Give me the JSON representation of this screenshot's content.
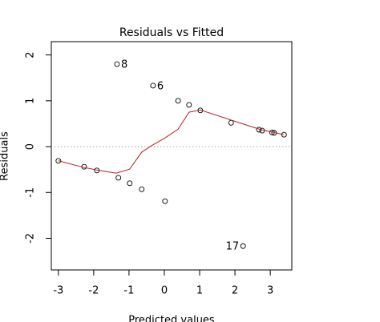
{
  "chart_data": {
    "type": "scatter",
    "title": "Residuals vs Fitted",
    "x_label": "Predicted values",
    "y_label": "Residuals",
    "xlim": [
      -3.2,
      3.61
    ],
    "ylim": [
      -2.69,
      2.29
    ],
    "xticks": [
      -3,
      -2,
      -1,
      0,
      1,
      2,
      3
    ],
    "yticks": [
      -2,
      -1,
      0,
      1,
      2
    ],
    "reference_line": 0,
    "series": [
      {
        "type": "scatter",
        "color": "#000000",
        "x": [
          -3.0,
          -2.27,
          -1.91,
          -1.34,
          -1.3,
          -0.98,
          -0.64,
          -0.32,
          0.02,
          0.39,
          0.7,
          1.02,
          1.89,
          2.23,
          2.68,
          2.77,
          3.05,
          3.11,
          3.39
        ],
        "values": [
          -0.31,
          -0.44,
          -0.52,
          1.8,
          -0.68,
          -0.8,
          -0.93,
          1.33,
          -1.19,
          1.0,
          0.91,
          0.79,
          0.52,
          -2.17,
          0.37,
          0.35,
          0.31,
          0.3,
          0.26
        ],
        "labels": [
          null,
          null,
          null,
          "8",
          null,
          null,
          null,
          "6",
          null,
          null,
          null,
          null,
          null,
          "17",
          null,
          null,
          null,
          null,
          null
        ]
      },
      {
        "type": "line",
        "color": "#b22222",
        "x": [
          -3.0,
          -2.3,
          -1.91,
          -1.36,
          -0.98,
          -0.64,
          -0.34,
          0.02,
          0.39,
          0.7,
          1.02,
          1.89,
          2.73,
          3.39
        ],
        "values": [
          -0.31,
          -0.45,
          -0.51,
          -0.58,
          -0.49,
          -0.12,
          0.03,
          0.19,
          0.38,
          0.75,
          0.8,
          0.58,
          0.37,
          0.26
        ]
      }
    ]
  }
}
